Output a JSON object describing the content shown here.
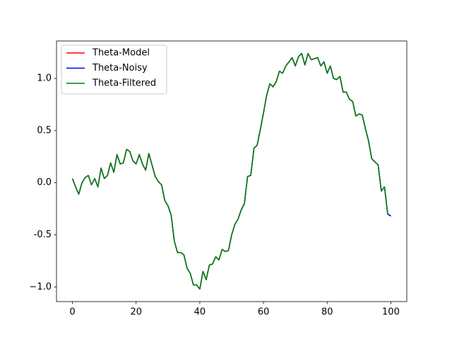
{
  "chart_data": {
    "type": "line",
    "x": [
      0,
      1,
      2,
      3,
      4,
      5,
      6,
      7,
      8,
      9,
      10,
      11,
      12,
      13,
      14,
      15,
      16,
      17,
      18,
      19,
      20,
      21,
      22,
      23,
      24,
      25,
      26,
      27,
      28,
      29,
      30,
      31,
      32,
      33,
      34,
      35,
      36,
      37,
      38,
      39,
      40,
      41,
      42,
      43,
      44,
      45,
      46,
      47,
      48,
      49,
      50,
      51,
      52,
      53,
      54,
      55,
      56,
      57,
      58,
      59,
      60,
      61,
      62,
      63,
      64,
      65,
      66,
      67,
      68,
      69,
      70,
      71,
      72,
      73,
      74,
      75,
      76,
      77,
      78,
      79,
      80,
      81,
      82,
      83,
      84,
      85,
      86,
      87,
      88,
      89,
      90,
      91,
      92,
      93,
      94,
      95,
      96,
      97,
      98,
      99,
      100
    ],
    "series": [
      {
        "name": "Theta-Model",
        "color": "#ff0000",
        "values": [
          0.04,
          -0.04,
          -0.11,
          0.0,
          0.05,
          0.07,
          -0.02,
          0.04,
          -0.04,
          0.14,
          0.04,
          0.07,
          0.19,
          0.1,
          0.27,
          0.18,
          0.19,
          0.32,
          0.3,
          0.21,
          0.18,
          0.27,
          0.18,
          0.12,
          0.28,
          0.17,
          0.06,
          0.01,
          -0.02,
          -0.17,
          -0.22,
          -0.31,
          -0.56,
          -0.67,
          -0.67,
          -0.69,
          -0.82,
          -0.87,
          -0.98,
          -0.98,
          -1.02,
          -0.85,
          -0.93,
          -0.79,
          -0.78,
          -0.71,
          -0.74,
          -0.64,
          -0.66,
          -0.65,
          -0.5,
          -0.4,
          -0.35,
          -0.26,
          -0.2,
          0.06,
          0.07,
          0.33,
          0.36,
          0.51,
          0.67,
          0.84,
          0.95,
          0.92,
          0.97,
          1.07,
          1.05,
          1.12,
          1.16,
          1.2,
          1.12,
          1.21,
          1.24,
          1.13,
          1.24,
          1.18,
          1.19,
          1.2,
          1.12,
          1.16,
          1.05,
          1.12,
          1.0,
          0.99,
          1.02,
          0.87,
          0.87,
          0.8,
          0.78,
          0.64,
          0.66,
          0.65,
          0.52,
          0.4,
          0.23,
          0.2,
          0.17,
          -0.08,
          -0.04,
          -0.3,
          -0.32
        ]
      },
      {
        "name": "Theta-Noisy",
        "color": "#0000ff",
        "values": [
          0.04,
          -0.04,
          -0.11,
          0.0,
          0.05,
          0.07,
          -0.02,
          0.04,
          -0.04,
          0.14,
          0.04,
          0.07,
          0.19,
          0.1,
          0.27,
          0.18,
          0.19,
          0.32,
          0.3,
          0.21,
          0.18,
          0.27,
          0.18,
          0.12,
          0.28,
          0.17,
          0.06,
          0.01,
          -0.02,
          -0.17,
          -0.22,
          -0.31,
          -0.56,
          -0.67,
          -0.67,
          -0.69,
          -0.82,
          -0.87,
          -0.98,
          -0.98,
          -1.02,
          -0.85,
          -0.93,
          -0.79,
          -0.78,
          -0.71,
          -0.74,
          -0.64,
          -0.66,
          -0.65,
          -0.5,
          -0.4,
          -0.35,
          -0.26,
          -0.2,
          0.06,
          0.07,
          0.33,
          0.36,
          0.51,
          0.67,
          0.84,
          0.95,
          0.92,
          0.97,
          1.07,
          1.05,
          1.12,
          1.16,
          1.2,
          1.12,
          1.21,
          1.24,
          1.13,
          1.24,
          1.18,
          1.19,
          1.2,
          1.12,
          1.16,
          1.05,
          1.12,
          1.0,
          0.99,
          1.02,
          0.87,
          0.87,
          0.8,
          0.78,
          0.64,
          0.66,
          0.65,
          0.52,
          0.4,
          0.23,
          0.2,
          0.17,
          -0.08,
          -0.04,
          -0.3,
          -0.32
        ]
      },
      {
        "name": "Theta-Filtered",
        "color": "#008000",
        "values": [
          0.04,
          -0.04,
          -0.11,
          0.0,
          0.05,
          0.07,
          -0.02,
          0.04,
          -0.04,
          0.14,
          0.04,
          0.07,
          0.19,
          0.1,
          0.27,
          0.18,
          0.19,
          0.32,
          0.3,
          0.21,
          0.18,
          0.27,
          0.18,
          0.12,
          0.28,
          0.17,
          0.06,
          0.01,
          -0.02,
          -0.17,
          -0.22,
          -0.31,
          -0.56,
          -0.67,
          -0.67,
          -0.69,
          -0.82,
          -0.87,
          -0.98,
          -0.98,
          -1.02,
          -0.85,
          -0.93,
          -0.79,
          -0.78,
          -0.71,
          -0.74,
          -0.64,
          -0.66,
          -0.65,
          -0.5,
          -0.4,
          -0.35,
          -0.26,
          -0.2,
          0.06,
          0.07,
          0.33,
          0.36,
          0.51,
          0.67,
          0.84,
          0.95,
          0.92,
          0.97,
          1.07,
          1.05,
          1.12,
          1.16,
          1.2,
          1.12,
          1.21,
          1.24,
          1.13,
          1.24,
          1.18,
          1.19,
          1.2,
          1.12,
          1.16,
          1.05,
          1.12,
          1.0,
          0.99,
          1.02,
          0.87,
          0.87,
          0.8,
          0.78,
          0.64,
          0.66,
          0.65,
          0.52,
          0.4,
          0.23,
          0.2,
          0.17,
          -0.08,
          -0.04,
          -0.3,
          null
        ]
      }
    ],
    "xlim": [
      -5,
      105
    ],
    "xticks": [
      0,
      20,
      40,
      60,
      80,
      100
    ],
    "ylim": [
      -1.14,
      1.36
    ],
    "yticks": [
      {
        "value": -1.0,
        "label": "−1.0"
      },
      -0.5,
      {
        "value": 0.0,
        "label": "0.0"
      },
      0.5,
      {
        "value": 1.0,
        "label": "1.0"
      }
    ],
    "legend": "upper left"
  }
}
